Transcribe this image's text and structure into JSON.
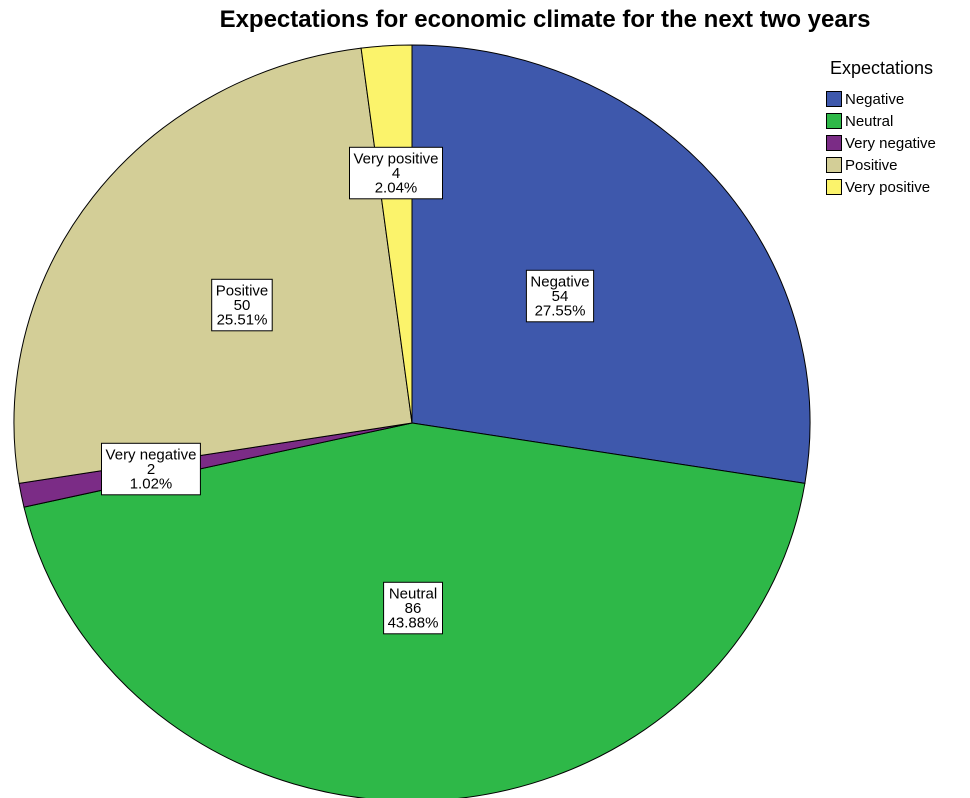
{
  "chart_data": {
    "type": "pie",
    "title": "Expectations for economic climate for the next two years",
    "legend": {
      "title": "Expectations",
      "placement": "top-right"
    },
    "slices": [
      {
        "category": "Negative",
        "count": "54",
        "percent": "27.55%",
        "value": 54,
        "color": "#3E58AC"
      },
      {
        "category": "Neutral",
        "count": "86",
        "percent": "43.88%",
        "value": 86,
        "color": "#2EB848"
      },
      {
        "category": "Very negative",
        "count": "2",
        "percent": "1.02%",
        "value": 2,
        "color": "#7B2C86"
      },
      {
        "category": "Positive",
        "count": "50",
        "percent": "25.51%",
        "value": 50,
        "color": "#D3CE97"
      },
      {
        "category": "Very positive",
        "count": "4",
        "percent": "2.04%",
        "value": 4,
        "color": "#FBF36B"
      }
    ]
  }
}
